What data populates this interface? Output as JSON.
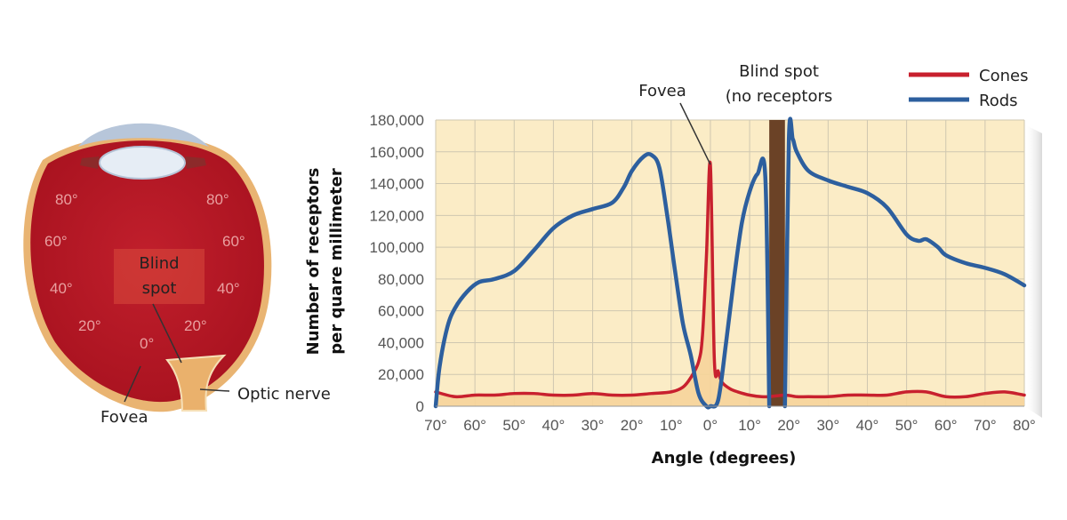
{
  "eye": {
    "labels": {
      "blind_spot_line1": "Blind",
      "blind_spot_line2": "spot",
      "fovea": "Fovea",
      "optic_nerve": "Optic nerve"
    },
    "angle_ticks": {
      "upper_left": "80°",
      "upper_right": "80°",
      "mid_left": "60°",
      "mid_right": "60°",
      "low_left": "40°",
      "low_right": "40°",
      "bottom_left": "20°",
      "bottom_right": "20°",
      "center": "0°"
    },
    "colors": {
      "retina": "#c8202e",
      "sclera": "#e8b070",
      "lens": "#dde6f0"
    }
  },
  "annotations": {
    "fovea": "Fovea",
    "blind_spot_line1": "Blind spot",
    "blind_spot_line2": "(no receptors"
  },
  "chart_data": {
    "type": "line",
    "title": "",
    "xlabel": "Angle (degrees)",
    "ylabel_line1": "Number of receptors",
    "ylabel_line2": "per quare millimeter",
    "x_tick_labels": [
      "70°",
      "60°",
      "50°",
      "40°",
      "30°",
      "20°",
      "10°",
      "0°",
      "10°",
      "20°",
      "30°",
      "40°",
      "50°",
      "60°",
      "70°",
      "80°"
    ],
    "y_tick_labels": [
      "180,000",
      "160,000",
      "140,000",
      "120,000",
      "100,000",
      "80,000",
      "60,000",
      "40,000",
      "20,000",
      "0"
    ],
    "ylim": [
      0,
      180000
    ],
    "xlim": [
      -70,
      80
    ],
    "grid": true,
    "legend_position": "top-right",
    "blind_spot_range": [
      15,
      19
    ],
    "series": [
      {
        "name": "Cones",
        "color": "#c8202e",
        "x": [
          -70,
          -65,
          -60,
          -55,
          -50,
          -45,
          -40,
          -35,
          -30,
          -25,
          -20,
          -15,
          -10,
          -7,
          -5,
          -3,
          -2,
          -1,
          0,
          1,
          2,
          3,
          5,
          7,
          10,
          13,
          15,
          19,
          22,
          25,
          30,
          35,
          40,
          45,
          50,
          55,
          60,
          65,
          70,
          75,
          80
        ],
        "y": [
          9000,
          6000,
          7000,
          7000,
          8000,
          8000,
          7000,
          7000,
          8000,
          7000,
          7000,
          8000,
          9000,
          12000,
          18000,
          28000,
          45000,
          95000,
          152000,
          30000,
          22000,
          15000,
          11000,
          9000,
          7000,
          6000,
          6000,
          7000,
          6000,
          6000,
          6000,
          7000,
          7000,
          7000,
          9000,
          9000,
          6000,
          6000,
          8000,
          9000,
          7000
        ]
      },
      {
        "name": "Rods",
        "color": "#2d5f9e",
        "x": [
          -70,
          -69,
          -67,
          -65,
          -62,
          -59,
          -55,
          -50,
          -45,
          -40,
          -35,
          -30,
          -25,
          -22,
          -20,
          -17,
          -15,
          -13,
          -11,
          -9,
          -7,
          -5,
          -3,
          -1,
          0,
          2,
          4,
          6,
          8,
          10,
          12,
          14,
          15,
          19,
          20,
          21,
          22,
          25,
          30,
          35,
          40,
          45,
          50,
          53,
          55,
          58,
          60,
          65,
          70,
          75,
          80
        ],
        "y": [
          0,
          25000,
          50000,
          62000,
          72000,
          78000,
          80000,
          85000,
          98000,
          112000,
          120000,
          124000,
          128000,
          138000,
          148000,
          157000,
          158000,
          150000,
          120000,
          85000,
          52000,
          32000,
          8000,
          0,
          0,
          4000,
          40000,
          80000,
          115000,
          135000,
          146000,
          144000,
          0,
          0,
          168000,
          168000,
          160000,
          148000,
          142000,
          138000,
          134000,
          125000,
          108000,
          104000,
          105000,
          100000,
          95000,
          90000,
          87000,
          83000,
          76000
        ]
      }
    ]
  }
}
